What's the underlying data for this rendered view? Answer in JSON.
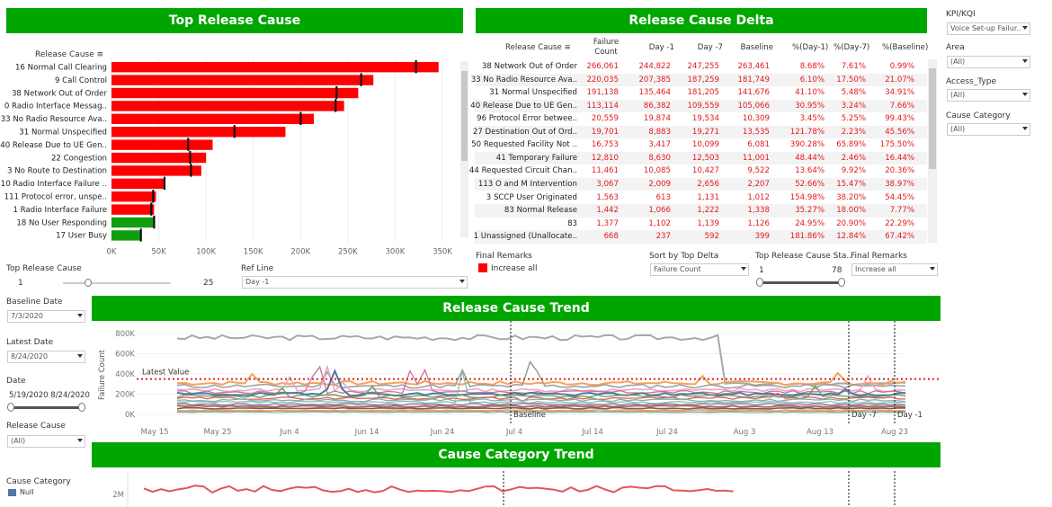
{
  "headers": {
    "top_release_cause": "Top Release Cause",
    "release_cause_delta": "Release Cause Delta",
    "release_cause_trend": "Release Cause Trend",
    "cause_category_trend": "Cause Category Trend"
  },
  "bar_chart": {
    "column_header": "Release Cause",
    "x_ticks": [
      "0K",
      "50K",
      "100K",
      "150K",
      "200K",
      "250K",
      "300K",
      "350K"
    ],
    "xlim": [
      0,
      350000
    ],
    "rows": [
      {
        "label": "16 Normal Call Clearing",
        "value": 346000,
        "ref": 322000,
        "color": "#ff0000"
      },
      {
        "label": "9 Call Control",
        "value": 277000,
        "ref": 264000,
        "color": "#ff0000"
      },
      {
        "label": "38 Network Out of Order",
        "value": 261000,
        "ref": 238000,
        "color": "#ff0000"
      },
      {
        "label": "0 Radio Interface Messag..",
        "value": 246000,
        "ref": 237000,
        "color": "#ff0000"
      },
      {
        "label": "33 No Radio Resource Ava..",
        "value": 214000,
        "ref": 200000,
        "color": "#ff0000"
      },
      {
        "label": "31 Normal Unspecified",
        "value": 184000,
        "ref": 130000,
        "color": "#ff0000"
      },
      {
        "label": "40 Release Due to UE Gen..",
        "value": 107000,
        "ref": 81000,
        "color": "#ff0000"
      },
      {
        "label": "22 Congestion",
        "value": 100000,
        "ref": 83000,
        "color": "#ff0000"
      },
      {
        "label": "3 No Route to Destination",
        "value": 95000,
        "ref": 84000,
        "color": "#ff0000"
      },
      {
        "label": "10 Radio Interface Failure ..",
        "value": 57000,
        "ref": 56000,
        "color": "#ff0000"
      },
      {
        "label": "111 Protocol error, unspe..",
        "value": 47000,
        "ref": 44000,
        "color": "#ff0000"
      },
      {
        "label": "1 Radio Interface Failure",
        "value": 45000,
        "ref": 42000,
        "color": "#ff0000"
      },
      {
        "label": "18 No User Responding",
        "value": 45000,
        "ref": 45000,
        "color": "#109e10"
      },
      {
        "label": "17 User Busy",
        "value": 32000,
        "ref": 31000,
        "color": "#109e10"
      }
    ]
  },
  "delta_table": {
    "columns": [
      "Release Cause",
      "Failure Count",
      "Day -1",
      "Day -7",
      "Baseline",
      "%(Day-1)",
      "%(Day-7)",
      "%(Baseline)"
    ],
    "rows": [
      [
        "38 Network Out of Order",
        "266,061",
        "244,822",
        "247,255",
        "263,461",
        "8.68%",
        "7.61%",
        "0.99%"
      ],
      [
        "33 No Radio Resource Ava..",
        "220,035",
        "207,385",
        "187,259",
        "181,749",
        "6.10%",
        "17.50%",
        "21.07%"
      ],
      [
        "31 Normal Unspecified",
        "191,138",
        "135,464",
        "181,205",
        "141,676",
        "41.10%",
        "5.48%",
        "34.91%"
      ],
      [
        "40 Release Due to UE Gen..",
        "113,114",
        "86,382",
        "109,559",
        "105,066",
        "30.95%",
        "3.24%",
        "7.66%"
      ],
      [
        "96 Protocol Error betwee..",
        "20,559",
        "19,874",
        "19,534",
        "10,309",
        "3.45%",
        "5.25%",
        "99.43%"
      ],
      [
        "27 Destination Out of Ord..",
        "19,701",
        "8,883",
        "19,271",
        "13,535",
        "121.78%",
        "2.23%",
        "45.56%"
      ],
      [
        "50 Requested Facility Not ..",
        "16,753",
        "3,417",
        "10,099",
        "6,081",
        "390.28%",
        "65.89%",
        "175.50%"
      ],
      [
        "41 Temporary Failure",
        "12,810",
        "8,630",
        "12,503",
        "11,001",
        "48.44%",
        "2.46%",
        "16.44%"
      ],
      [
        "44 Requested Circuit Chan..",
        "11,461",
        "10,085",
        "10,427",
        "9,522",
        "13.64%",
        "9.92%",
        "20.36%"
      ],
      [
        "113 O and M Intervention",
        "3,067",
        "2,009",
        "2,656",
        "2,207",
        "52.66%",
        "15.47%",
        "38.97%"
      ],
      [
        "3 SCCP User Originated",
        "1,563",
        "613",
        "1,131",
        "1,012",
        "154.98%",
        "38.20%",
        "54.45%"
      ],
      [
        "83 Normal Release",
        "1,442",
        "1,066",
        "1,222",
        "1,338",
        "35.27%",
        "18.00%",
        "7.77%"
      ],
      [
        "83",
        "1,377",
        "1,102",
        "1,139",
        "1,126",
        "24.95%",
        "20.90%",
        "22.29%"
      ],
      [
        "1 Unassigned (Unallocate..",
        "668",
        "237",
        "592",
        "399",
        "181.86%",
        "12.84%",
        "67.42%"
      ]
    ]
  },
  "filters": {
    "kpi_label": "KPI/KQI",
    "kpi_value": "Voice Set-up Failur..",
    "area_label": "Area",
    "area_value": "(All)",
    "access_label": "Access_Type",
    "access_value": "(All)",
    "cause_cat_label": "Cause Category",
    "cause_cat_value": "(All)"
  },
  "controls": {
    "top_release_cause_label": "Top Release Cause",
    "top_release_cause_min": "1",
    "top_release_cause_max": "25",
    "ref_line_label": "Ref Line",
    "ref_line_value": "Day -1",
    "final_remarks_label": "Final Remarks",
    "legend_increase": "Increase all",
    "sort_label": "Sort by Top Delta",
    "sort_value": "Failure Count",
    "top_rc_sta_label": "Top Release Cause  Sta..",
    "top_rc_sta_min": "1",
    "top_rc_sta_max": "78",
    "final_remarks2_label": "Final Remarks",
    "final_remarks2_value": "Increase all",
    "baseline_date_label": "Baseline Date",
    "baseline_date_value": "7/3/2020",
    "latest_date_label": "Latest Date",
    "latest_date_value": "8/24/2020",
    "date_label": "Date",
    "date_range": "5/19/2020 8/24/2020",
    "release_cause_label": "Release Cause",
    "release_cause_value": "(All)",
    "cause_category_label": "Cause Category",
    "cause_category_legend": "Null"
  },
  "trend_chart": {
    "y_label": "Failure Count",
    "y_ticks": [
      "800K",
      "600K",
      "400K",
      "200K",
      "0K"
    ],
    "ylim": [
      0,
      800000
    ],
    "x_ticks": [
      "May 15",
      "May 25",
      "Jun 4",
      "Jun 14",
      "Jun 24",
      "Jul 4",
      "Jul 14",
      "Jul 24",
      "Aug 3",
      "Aug 13",
      "Aug 23"
    ],
    "latest_value_label": "Latest Value",
    "latest_value": 350000,
    "baseline_label": "Baseline",
    "day7_label": "Day -7",
    "day1_label": "Day -1"
  },
  "cat_trend": {
    "y_tick": "2M"
  }
}
